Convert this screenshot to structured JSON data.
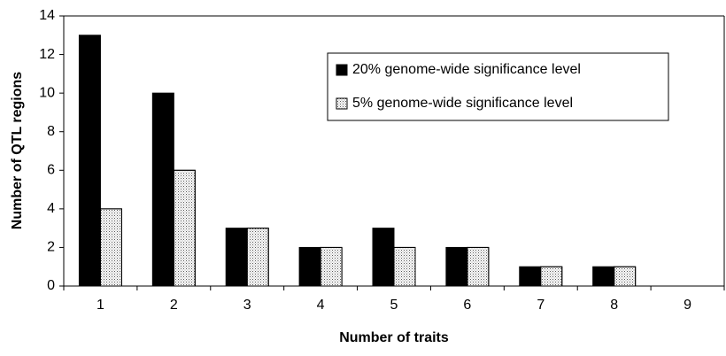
{
  "chart_data": {
    "type": "bar",
    "x_label": "Number of traits",
    "y_label": "Number of QTL regions",
    "categories": [
      "1",
      "2",
      "3",
      "4",
      "5",
      "6",
      "7",
      "8",
      "9"
    ],
    "series": [
      {
        "name": "20% genome-wide significance level",
        "color": "#000000",
        "values": [
          13,
          10,
          3,
          2,
          3,
          2,
          1,
          1,
          0
        ]
      },
      {
        "name": "5% genome-wide significance level",
        "color": "#ffffff",
        "pattern": "dots",
        "values": [
          4,
          6,
          3,
          2,
          2,
          2,
          1,
          1,
          0
        ]
      }
    ],
    "ylim": [
      0,
      14
    ],
    "yticks": [
      0,
      2,
      4,
      6,
      8,
      10,
      12,
      14
    ],
    "grid": false,
    "legend": "upper right"
  }
}
